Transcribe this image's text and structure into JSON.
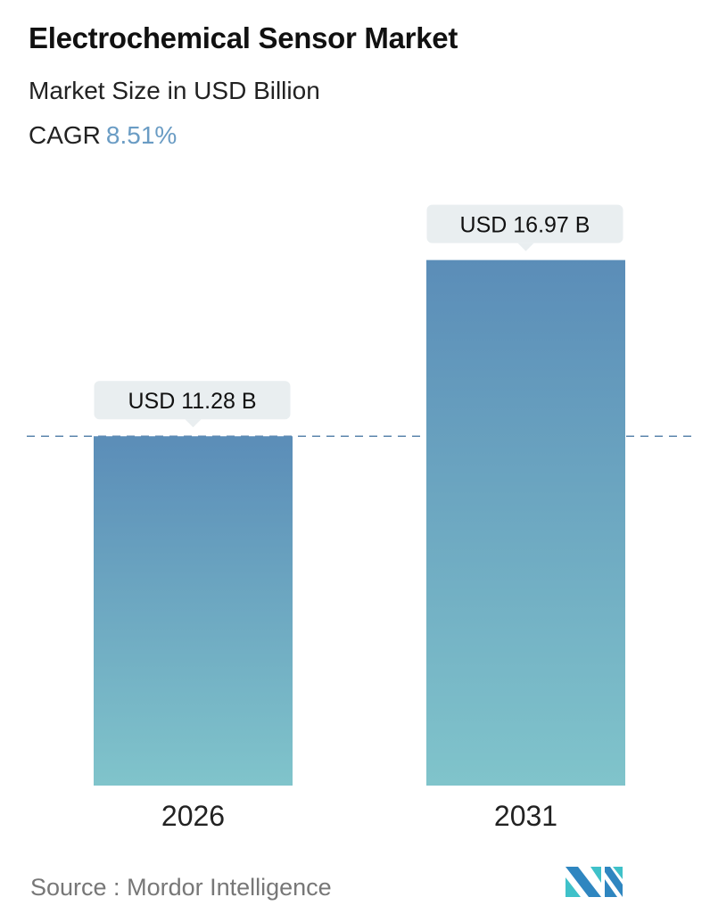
{
  "header": {
    "title": "Electrochemical Sensor Market",
    "subtitle": "Market Size in USD Billion",
    "cagr_label": "CAGR",
    "cagr_value": "8.51%"
  },
  "chart_data": {
    "type": "bar",
    "categories": [
      "2026",
      "2031"
    ],
    "values": [
      11.28,
      16.97
    ],
    "data_labels": [
      "USD 11.28 B",
      "USD 16.97 B"
    ],
    "unit": "USD Billion",
    "reference_line": 11.28,
    "grid": false,
    "colors": {
      "bar_top": "#5b8db8",
      "bar_bottom": "#80c4cb",
      "label_bg": "#e9eef0",
      "dashed_line": "#5b86ad",
      "accent": "#6a9cc4"
    }
  },
  "footer": {
    "source_label": "Source :",
    "source_value": "Mordor Intelligence",
    "logo_text": "MI"
  }
}
